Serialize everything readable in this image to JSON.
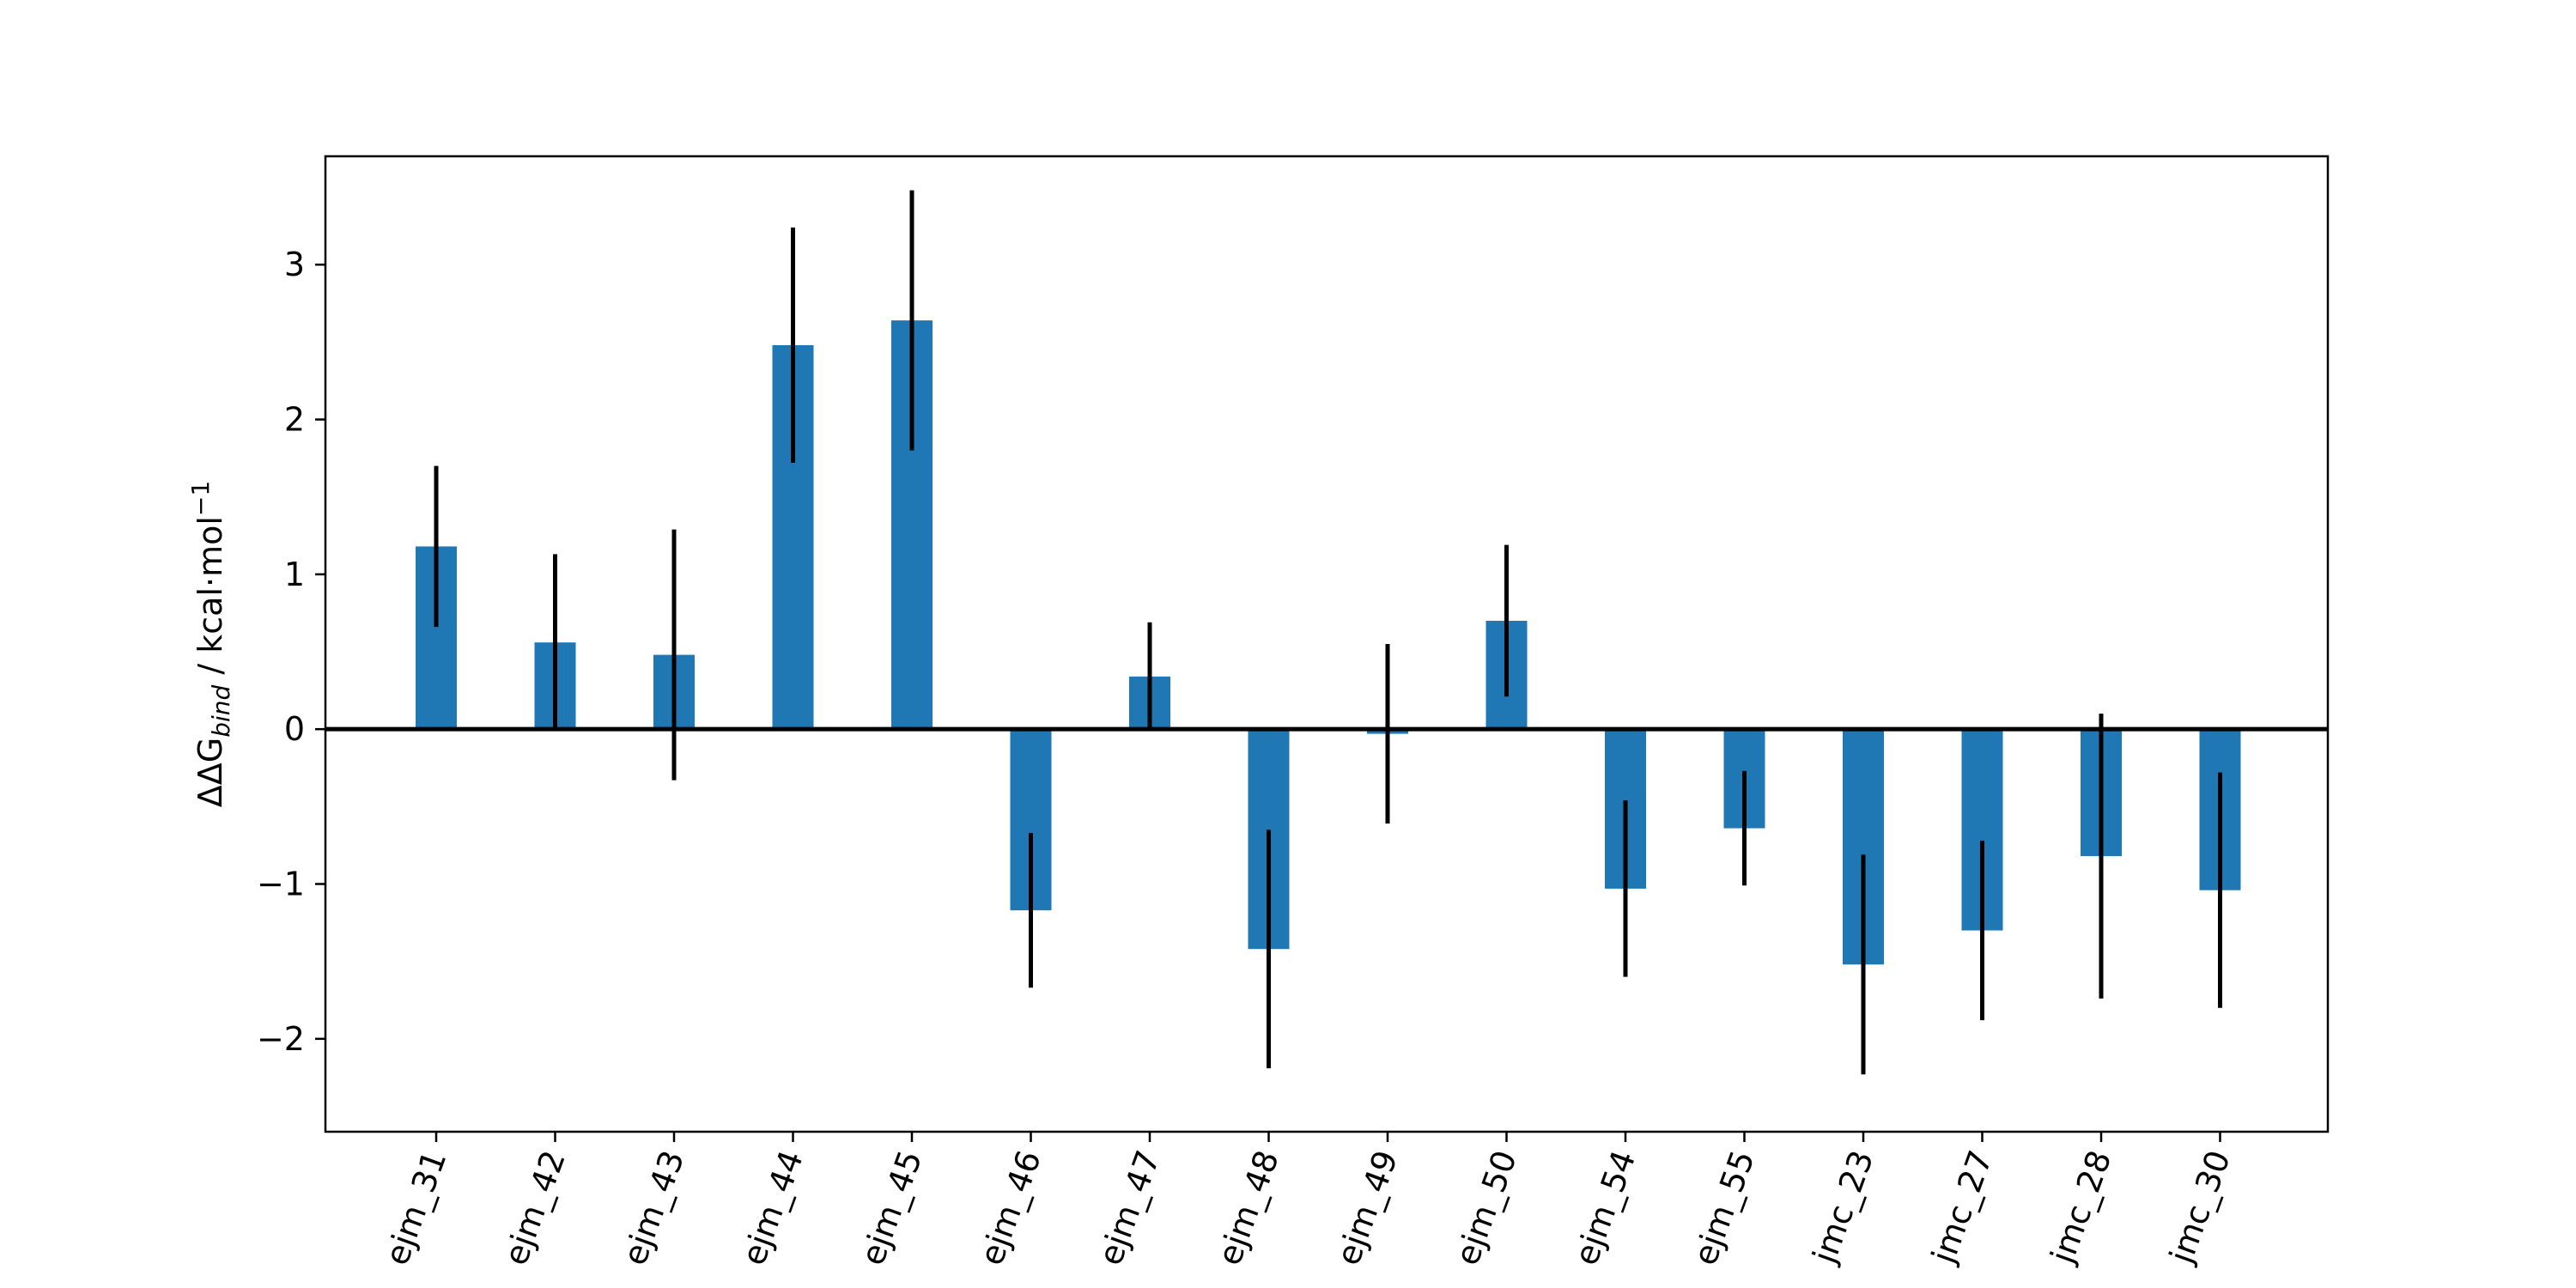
{
  "chart_data": {
    "type": "bar",
    "title": "",
    "xlabel": "",
    "ylabel": {
      "prefix": "ΔΔG",
      "subscript": "bind",
      "unit_text": " / kcal·mol",
      "superscript": "−1"
    },
    "ylim": [
      -2.6,
      3.7
    ],
    "yticks": [
      -2,
      -1,
      0,
      1,
      2,
      3
    ],
    "ytick_labels": [
      "−2",
      "−1",
      "0",
      "1",
      "2",
      "3"
    ],
    "categories": [
      "ejm_31",
      "ejm_42",
      "ejm_43",
      "ejm_44",
      "ejm_45",
      "ejm_46",
      "ejm_47",
      "ejm_48",
      "ejm_49",
      "ejm_50",
      "ejm_54",
      "ejm_55",
      "jmc_23",
      "jmc_27",
      "jmc_28",
      "jmc_30"
    ],
    "values": [
      1.18,
      0.56,
      0.48,
      2.48,
      2.64,
      -1.17,
      0.34,
      -1.42,
      -0.03,
      0.7,
      -1.03,
      -0.64,
      -1.52,
      -1.3,
      -0.82,
      -1.04
    ],
    "errors": [
      0.52,
      0.57,
      0.81,
      0.76,
      0.84,
      0.5,
      0.35,
      0.77,
      0.58,
      0.49,
      0.57,
      0.37,
      0.71,
      0.58,
      0.92,
      0.76
    ],
    "bar_color": "#1f77b4",
    "error_color": "#000000",
    "zero_line": true,
    "grid": false,
    "legend": "none"
  }
}
